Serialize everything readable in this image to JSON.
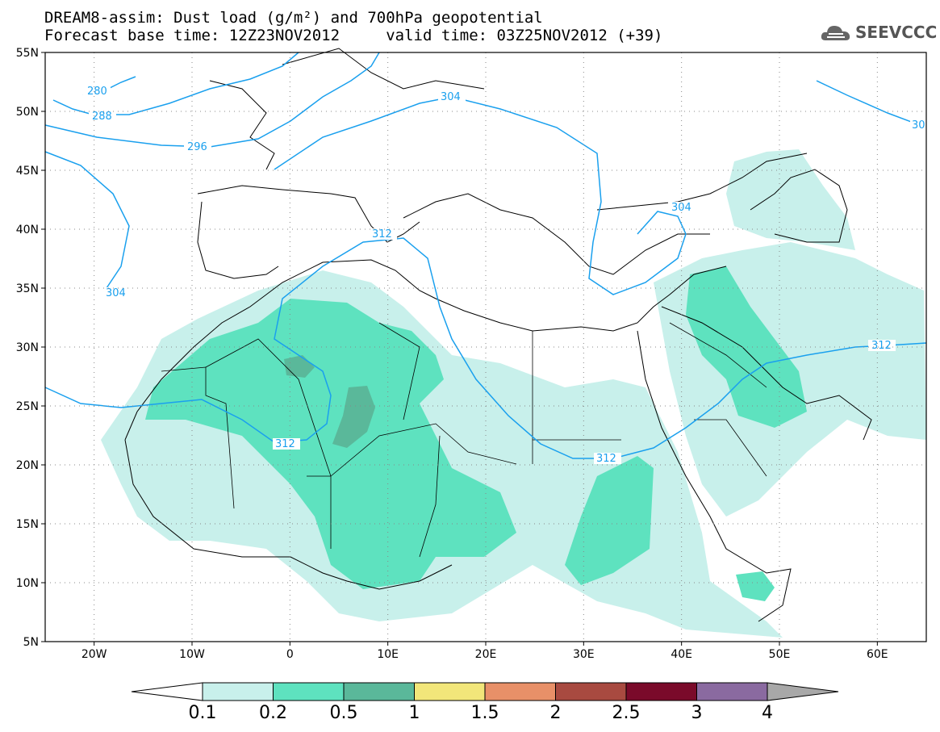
{
  "header": {
    "title_line1": "DREAM8-assim: Dust load (g/m²) and 700hPa geopotential",
    "title_line2": "Forecast base time: 12Z23NOV2012     valid time: 03Z25NOV2012 (+39)"
  },
  "logo": {
    "text": "SEEVCCC",
    "icon": "cloud-logo-icon"
  },
  "map": {
    "lon_range": [
      -25,
      65
    ],
    "lat_range": [
      5,
      55
    ],
    "lat_ticks": [
      {
        "value": 55,
        "label": "55N"
      },
      {
        "value": 50,
        "label": "50N"
      },
      {
        "value": 45,
        "label": "45N"
      },
      {
        "value": 40,
        "label": "40N"
      },
      {
        "value": 35,
        "label": "35N"
      },
      {
        "value": 30,
        "label": "30N"
      },
      {
        "value": 25,
        "label": "25N"
      },
      {
        "value": 20,
        "label": "20N"
      },
      {
        "value": 15,
        "label": "15N"
      },
      {
        "value": 10,
        "label": "10N"
      },
      {
        "value": 5,
        "label": "5N"
      }
    ],
    "lon_ticks": [
      {
        "value": -20,
        "label": "20W"
      },
      {
        "value": -10,
        "label": "10W"
      },
      {
        "value": 0,
        "label": "0"
      },
      {
        "value": 10,
        "label": "10E"
      },
      {
        "value": 20,
        "label": "20E"
      },
      {
        "value": 30,
        "label": "30E"
      },
      {
        "value": 40,
        "label": "40E"
      },
      {
        "value": 50,
        "label": "50E"
      },
      {
        "value": 60,
        "label": "60E"
      }
    ],
    "contour_labels": [
      "280",
      "288",
      "296",
      "304",
      "304",
      "304",
      "312",
      "312",
      "312",
      "312",
      "30"
    ]
  },
  "legend": {
    "colors": [
      "#ffffff",
      "#c8f0eb",
      "#5ee2bf",
      "#5ab89a",
      "#f2e67a",
      "#e89068",
      "#a84a40",
      "#7a0a2a",
      "#8a6aa0",
      "#a8a8a8"
    ],
    "labels": [
      "0.1",
      "0.2",
      "0.5",
      "1",
      "1.5",
      "2",
      "2.5",
      "3",
      "4"
    ]
  }
}
